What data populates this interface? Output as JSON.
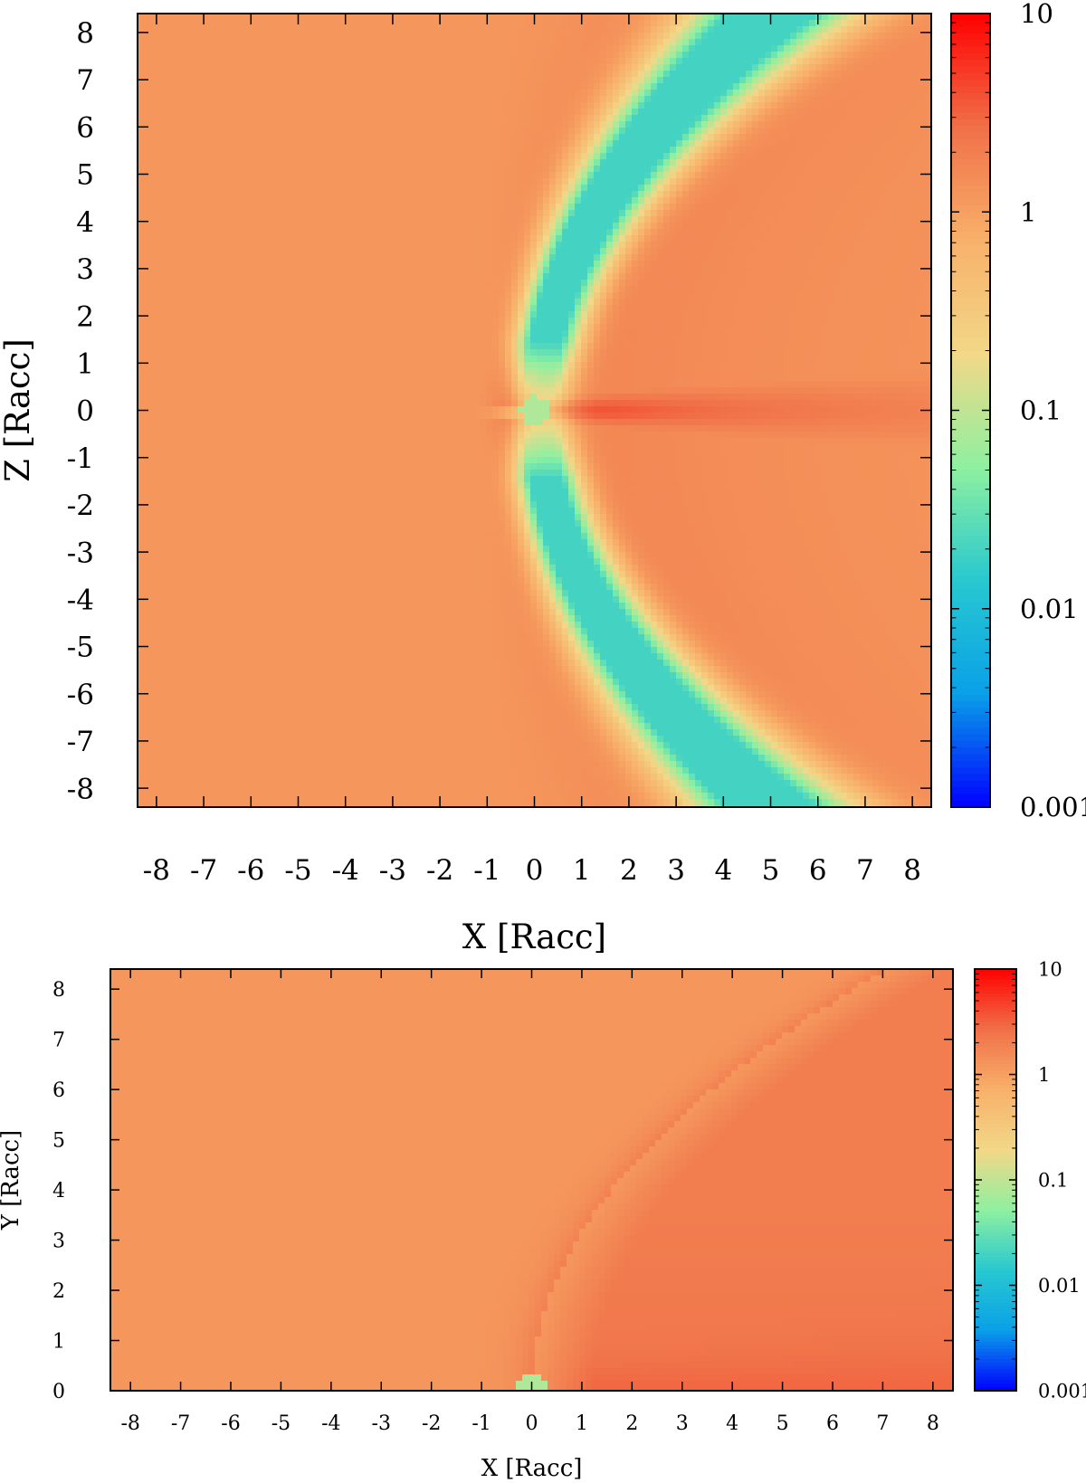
{
  "chart_data": [
    {
      "type": "heatmap",
      "title": "",
      "xlabel": "X [Racc]",
      "ylabel": "Z [Racc]",
      "xlim": [
        -8.4,
        8.4
      ],
      "ylim": [
        -8.4,
        8.4
      ],
      "x_ticks": [
        -8,
        -7,
        -6,
        -5,
        -4,
        -3,
        -2,
        -1,
        0,
        1,
        2,
        3,
        4,
        5,
        6,
        7,
        8
      ],
      "y_ticks": [
        -8,
        -7,
        -6,
        -5,
        -4,
        -3,
        -2,
        -1,
        0,
        1,
        2,
        3,
        4,
        5,
        6,
        7,
        8
      ],
      "colorbar": {
        "scale": "log",
        "range": [
          0.001,
          10
        ],
        "tick_values": [
          10,
          1,
          0.1,
          0.01,
          0.001
        ],
        "tick_labels": [
          "10",
          "1",
          "0.1",
          "0.01",
          "0.001"
        ],
        "colormap": [
          "#0000ff",
          "#0aa0e8",
          "#28c8d0",
          "#8ef0a0",
          "#f2d888",
          "#f8b06a",
          "#f07048",
          "#ff0000"
        ]
      },
      "background_value": 1.2,
      "features": [
        {
          "name": "bow shock",
          "value": 5,
          "apex_x": -0.35,
          "opening": 0.07
        },
        {
          "name": "low-value shell",
          "value": 0.02,
          "apex_x": 0.1,
          "opening": 0.07
        },
        {
          "name": "equatorial wake",
          "value": 5,
          "z": 0
        },
        {
          "name": "accretor",
          "value": 0.08,
          "x": 0,
          "z": 0
        }
      ]
    },
    {
      "type": "heatmap",
      "title": "",
      "xlabel": "X [Racc]",
      "ylabel": "Y [Racc]",
      "xlim": [
        -8.4,
        8.4
      ],
      "ylim": [
        0,
        8.4
      ],
      "x_ticks": [
        -8,
        -7,
        -6,
        -5,
        -4,
        -3,
        -2,
        -1,
        0,
        1,
        2,
        3,
        4,
        5,
        6,
        7,
        8
      ],
      "y_ticks": [
        0,
        1,
        2,
        3,
        4,
        5,
        6,
        7,
        8
      ],
      "colorbar": {
        "scale": "log",
        "range": [
          0.001,
          10
        ],
        "tick_values": [
          10,
          1,
          0.1,
          0.01,
          0.001
        ],
        "tick_labels": [
          "10",
          "1",
          "0.1",
          "0.01",
          "0.001"
        ],
        "colormap": [
          "#0000ff",
          "#0aa0e8",
          "#28c8d0",
          "#8ef0a0",
          "#f2d888",
          "#f8b06a",
          "#f07048",
          "#ff0000"
        ]
      },
      "background_value": 1.2,
      "features": [
        {
          "name": "wake cone",
          "value": 3,
          "apex_x": 0,
          "opening": 0.1
        },
        {
          "name": "accretor",
          "value": 0.08,
          "x": 0,
          "y": 0
        }
      ]
    }
  ]
}
